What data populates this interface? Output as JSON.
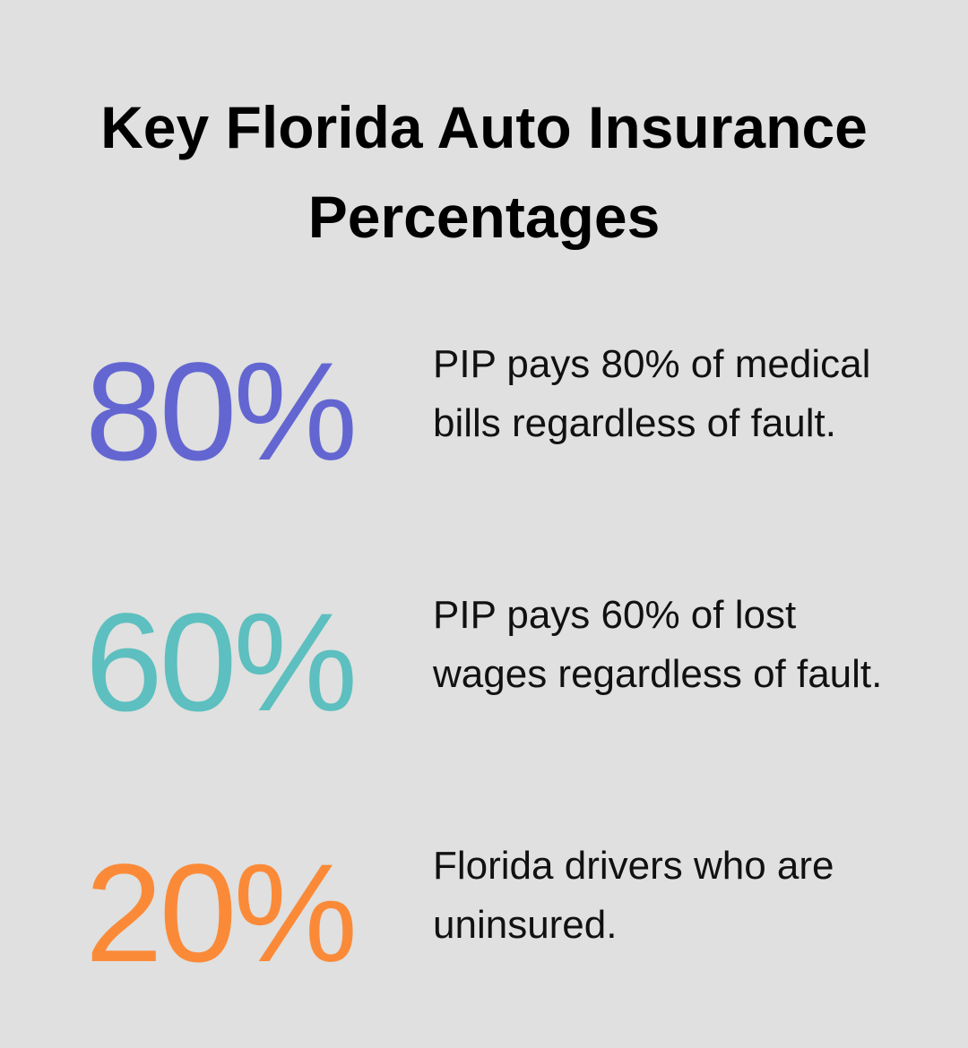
{
  "header": {
    "title": "Key Florida Auto Insurance Percentages"
  },
  "items": [
    {
      "stat": "80%",
      "color": "#6366d1",
      "description": "PIP pays 80% of medical bills regardless of fault."
    },
    {
      "stat": "60%",
      "color": "#5dbfbf",
      "description": "PIP pays 60% of lost wages regardless of fault."
    },
    {
      "stat": "20%",
      "color": "#fb8a38",
      "description": "Florida drivers who are uninsured."
    }
  ]
}
